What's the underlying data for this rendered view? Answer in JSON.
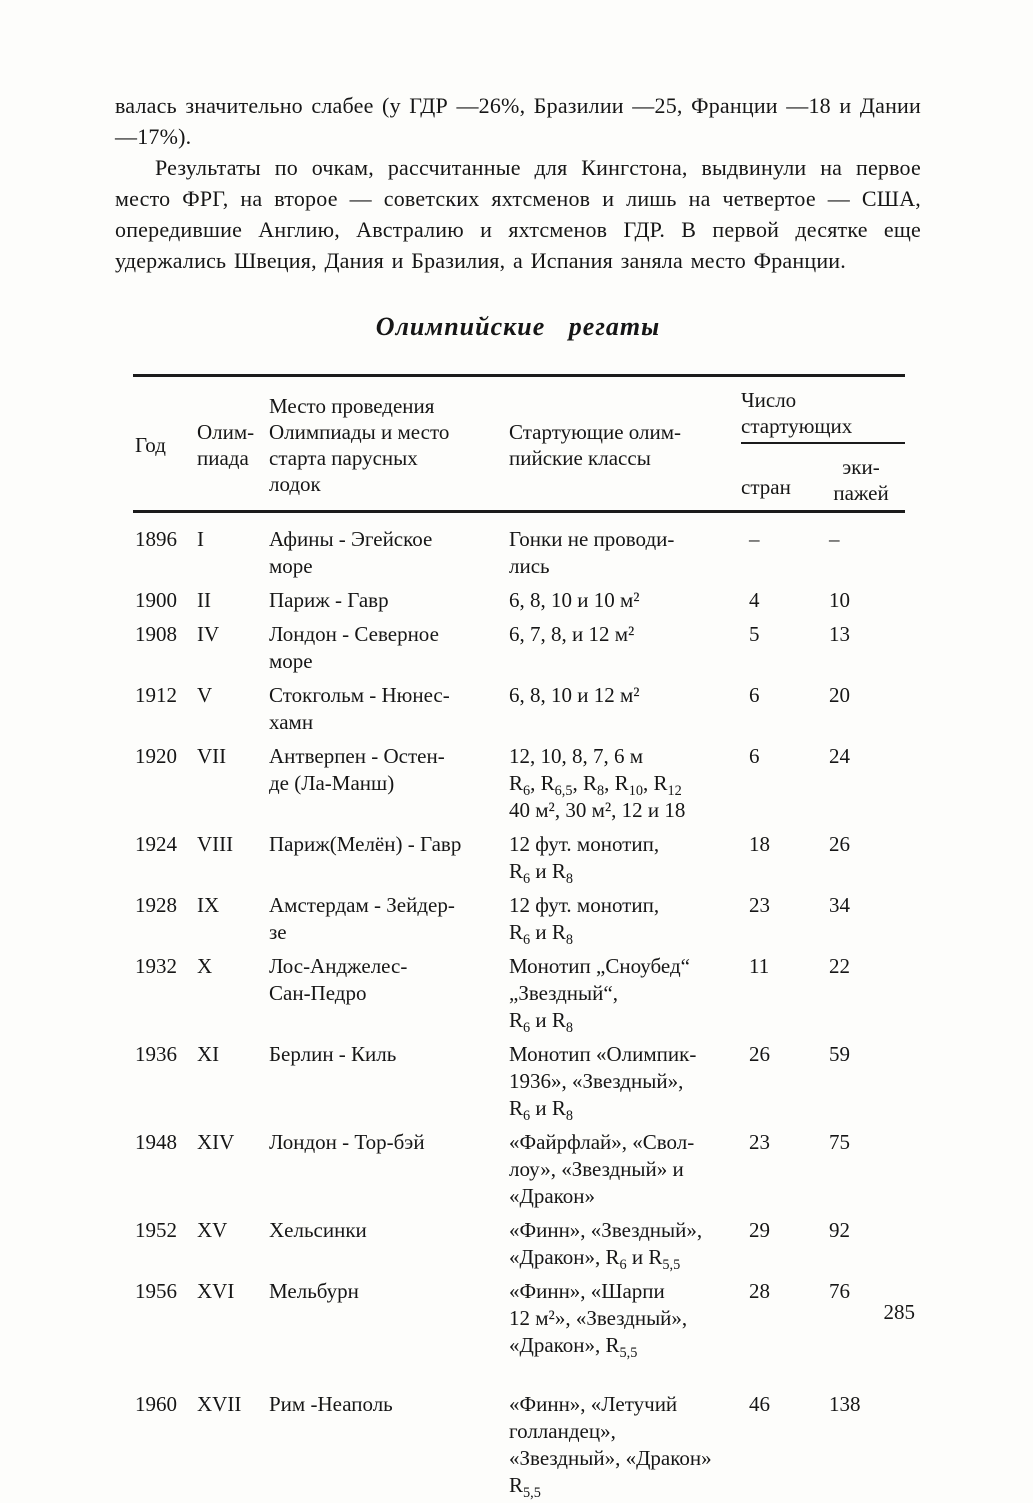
{
  "article": {
    "paragraphs": [
      "валась значительно слабее (у ГДР —26%, Бразилии —25, Франции —18 и Дании —17%).",
      "Результаты по очкам, рассчитанные для Кингстона, выдвинули на первое место ФРГ, на второе — советских яхтсменов и лишь на четвертое — США, опередившие Англию, Австралию и яхтсменов ГДР. В первой десятке еще удержались Швеция, Дания и Бразилия, а Испания заняла место Франции."
    ]
  },
  "table": {
    "title": "Олимпийские регаты",
    "columns": {
      "year": "Год",
      "olympiad": "Олим-<br>пиада",
      "venue": "Место проведения<br>Олимпиады и место<br>старта парусных<br>лодок",
      "classes": "Стартующие олим-<br>пийские классы",
      "starters_group": "Число<br>стартующих",
      "countries": "стран",
      "crews": "эки-<br>пажей"
    },
    "rows": [
      {
        "year": "1896",
        "olympiad": "I",
        "venue": "Афины - Эгейское<br>море",
        "classes": "Гонки не проводи-<br>лись",
        "countries": "–",
        "crews": "–"
      },
      {
        "year": "1900",
        "olympiad": "II",
        "venue": "Париж - Гавр",
        "classes": "6, 8, 10 и 10 м²",
        "countries": "4",
        "crews": "10"
      },
      {
        "year": "1908",
        "olympiad": "IV",
        "venue": "Лондон - Северное<br>море",
        "classes": "6, 7, 8, и 12 м²",
        "countries": "5",
        "crews": "13"
      },
      {
        "year": "1912",
        "olympiad": "V",
        "venue": "Стокгольм - Нюнес-<br>хамн",
        "classes": "6, 8, 10 и 12 м²",
        "countries": "6",
        "crews": "20"
      },
      {
        "year": "1920",
        "olympiad": "VII",
        "venue": "Антверпен - Остен-<br>де  (Ла-Манш)",
        "classes": "12, 10, 8, 7, 6 м<br>R<sub>6</sub>, R<sub>6,5</sub>, R<sub>8</sub>, R<sub>10</sub>, R<sub>12</sub><br>40 м², 30 м², 12 и 18",
        "countries": "6",
        "crews": "24"
      },
      {
        "year": "1924",
        "olympiad": "VIII",
        "venue": "Париж(Мелён) - Гавр",
        "classes": "12 фут. монотип,<br>R<sub>6</sub> и R<sub>8</sub>",
        "countries": "18",
        "crews": "26"
      },
      {
        "year": "1928",
        "olympiad": "IX",
        "venue": "Амстердам - Зейдер-<br>зе",
        "classes": "12 фут. монотип,<br>R<sub>6</sub> и R<sub>8</sub>",
        "countries": "23",
        "crews": "34"
      },
      {
        "year": "1932",
        "olympiad": "X",
        "venue": "Лос-Анджелес-<br>Сан-Педро",
        "classes": "Монотип „Сноубед“<br>„Звездный“,<br>R<sub>6</sub> и R<sub>8</sub>",
        "countries": "11",
        "crews": "22"
      },
      {
        "year": "1936",
        "olympiad": "XI",
        "venue": "Берлин - Киль",
        "classes": "Монотип «Олимпик-<br>1936», «Звездный»,<br>R<sub>6</sub> и R<sub>8</sub>",
        "countries": "26",
        "crews": "59"
      },
      {
        "year": "1948",
        "olympiad": "XIV",
        "venue": "Лондон - Тор-бэй",
        "classes": "«Файрфлай», «Свол-<br>лоу», «Звездный» и<br>«Дракон»",
        "countries": "23",
        "crews": "75"
      },
      {
        "year": "1952",
        "olympiad": "XV",
        "venue": "Хельсинки",
        "classes": "«Финн», «Звездный»,<br>«Дракон», R<sub>6</sub> и R<sub>5,5</sub>",
        "countries": "29",
        "crews": "92"
      },
      {
        "year": "1956",
        "olympiad": "XVI",
        "venue": "Мельбурн",
        "classes": "«Финн», «Шарпи<br>12 м²», «Звездный»,<br>«Дракон», R<sub>5,5</sub>",
        "countries": "28",
        "crews": "76"
      },
      {
        "year": "1960",
        "olympiad": "XVII",
        "venue": "Рим -Неаполь",
        "classes": "«Финн», «Летучий<br>голландец»,<br>«Звездный», «Дракон»<br>R<sub>5,5</sub>",
        "countries": "46",
        "crews": "138"
      }
    ]
  },
  "page": {
    "number": "285"
  }
}
